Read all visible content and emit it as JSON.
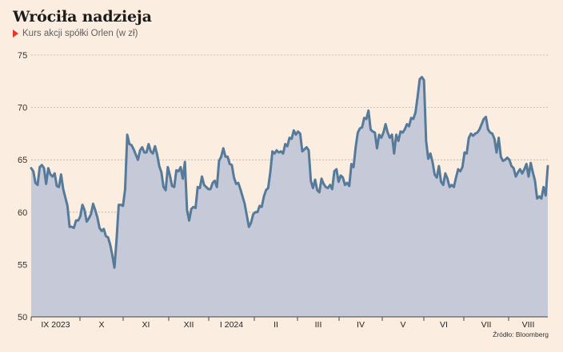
{
  "title": "Wróciła nadzieja",
  "subtitle": "Kurs akcji spółki Orlen (w zł)",
  "source": "Źródło: Bloomberg",
  "colors": {
    "background": "#fbeee0",
    "line": "#557a9a",
    "area": "#c5c9d8",
    "grid": "#b8b0a6",
    "accent": "#e8352c"
  },
  "chart_data": {
    "type": "area",
    "title": "Wróciła nadzieja",
    "subtitle": "Kurs akcji spółki Orlen (w zł)",
    "ylim": [
      50,
      75
    ],
    "yticks": [
      75,
      70,
      65,
      60,
      55,
      50
    ],
    "grid": true,
    "month_labels": [
      "IX 2023",
      "X",
      "XI",
      "XII",
      "I 2024",
      "II",
      "III",
      "IV",
      "V",
      "VI",
      "VII",
      "VIII"
    ],
    "series": [
      {
        "values": [
          64.2,
          63.9,
          62.8,
          62.6,
          64.3,
          64.5,
          64.2,
          62.7,
          64.2,
          63.6,
          63.4,
          63.7,
          62.5,
          62.4,
          63.6,
          62.2,
          61.4,
          60.6,
          58.6,
          58.6,
          58.5,
          59.2,
          59.2,
          59.6,
          60.7,
          60.2,
          59.1,
          59.4,
          59.8,
          60.8,
          60.2,
          59.5,
          58.5,
          58.2,
          58.4,
          57.7,
          57.6,
          56.9,
          55.9,
          54.7,
          57.4,
          60.7,
          60.7,
          60.6,
          62.2,
          67.4,
          66.5,
          66.4,
          66.0,
          65.5,
          65.0,
          65.9,
          66.2,
          65.7,
          65.7,
          66.5,
          65.8,
          65.6,
          66.3,
          65.5,
          64.4,
          63.8,
          62.4,
          62.1,
          64.3,
          63.5,
          62.5,
          62.4,
          64.0,
          63.9,
          64.3,
          63.2,
          64.8,
          60.2,
          59.2,
          60.3,
          60.5,
          60.4,
          62.4,
          62.3,
          63.4,
          62.6,
          62.4,
          62.2,
          62.2,
          62.8,
          63.0,
          62.4,
          64.9,
          65.3,
          66.1,
          65.3,
          65.3,
          64.6,
          64.5,
          63.3,
          62.7,
          62.8,
          62.2,
          61.5,
          60.8,
          59.7,
          58.6,
          59.0,
          59.8,
          60.0,
          60.0,
          60.6,
          60.5,
          61.5,
          62.1,
          62.3,
          63.8,
          65.8,
          65.6,
          65.9,
          65.7,
          65.8,
          65.6,
          66.5,
          66.3,
          67.1,
          67.0,
          67.8,
          67.4,
          67.7,
          67.5,
          65.8,
          66.0,
          66.2,
          65.9,
          63.0,
          62.3,
          63.1,
          62.1,
          61.9,
          63.2,
          62.7,
          62.4,
          62.3,
          62.6,
          62.2,
          63.9,
          64.1,
          62.9,
          63.5,
          63.3,
          62.6,
          62.8,
          62.5,
          64.6,
          64.3,
          66.2,
          67.6,
          68.0,
          68.1,
          69.0,
          68.9,
          69.7,
          67.9,
          67.7,
          67.6,
          66.1,
          67.4,
          67.1,
          67.6,
          68.4,
          67.6,
          67.1,
          67.4,
          65.6,
          67.4,
          66.8,
          67.7,
          67.6,
          67.9,
          68.4,
          68.2,
          69.0,
          68.9,
          69.5,
          71.0,
          72.7,
          72.9,
          72.6,
          66.8,
          65.1,
          65.6,
          64.8,
          63.6,
          63.3,
          64.4,
          62.9,
          62.6,
          63.7,
          63.2,
          62.4,
          62.6,
          62.4,
          63.3,
          64.1,
          63.9,
          64.3,
          65.7,
          65.6,
          67.1,
          67.5,
          67.3,
          67.5,
          67.6,
          67.9,
          68.4,
          68.9,
          69.1,
          67.9,
          67.6,
          67.5,
          67.0,
          65.7,
          67.1,
          65.3,
          64.9,
          65.0,
          65.2,
          65.0,
          64.4,
          64.2,
          63.4,
          63.8,
          64.1,
          63.7,
          64.1,
          64.6,
          63.4,
          64.7,
          63.8,
          63.0,
          61.3,
          61.5,
          61.3,
          62.4,
          61.6,
          64.4
        ]
      }
    ]
  }
}
